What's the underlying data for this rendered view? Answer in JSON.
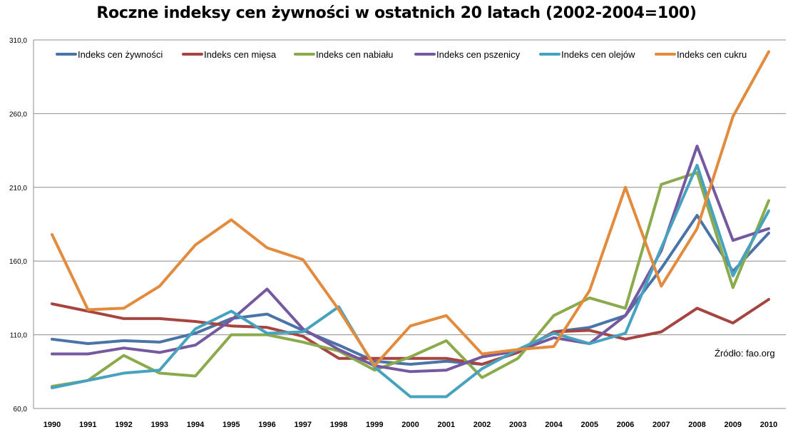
{
  "chart_data": {
    "type": "line",
    "title": "Roczne indeksy cen żywności w ostatnich 20 latach (2002-2004=100)",
    "xlabel": "",
    "ylabel": "",
    "ylim": [
      60,
      310
    ],
    "yticks": [
      "60,0",
      "110,0",
      "160,0",
      "210,0",
      "260,0",
      "310,0"
    ],
    "ytick_values": [
      60,
      110,
      160,
      210,
      260,
      310
    ],
    "categories": [
      "1990",
      "1991",
      "1992",
      "1993",
      "1994",
      "1995",
      "1996",
      "1997",
      "1998",
      "1999",
      "2000",
      "2001",
      "2002",
      "2003",
      "2004",
      "2005",
      "2006",
      "2007",
      "2008",
      "2009",
      "2010"
    ],
    "grid": true,
    "legend_position": "top",
    "source_note": "Źródło: fao.org",
    "series": [
      {
        "name": "Indeks cen żywności",
        "color": "#4a73a8",
        "values": [
          107,
          104,
          106,
          105,
          111,
          121,
          124,
          113,
          103,
          92,
          90,
          92,
          90,
          98,
          112,
          115,
          123,
          155,
          191,
          153,
          179
        ]
      },
      {
        "name": "Indeks cen mięsa",
        "color": "#a64540",
        "values": [
          131,
          126,
          121,
          121,
          119,
          116,
          115,
          109,
          94,
          94,
          94,
          94,
          90,
          98,
          112,
          113,
          107,
          112,
          128,
          118,
          134
        ]
      },
      {
        "name": "Indeks cen nabiału",
        "color": "#8aaa4b",
        "values": [
          75,
          79,
          96,
          84,
          82,
          110,
          110,
          105,
          99,
          86,
          95,
          106,
          81,
          94,
          123,
          135,
          128,
          212,
          220,
          142,
          201
        ]
      },
      {
        "name": "Indeks cen pszenicy",
        "color": "#7558a0",
        "values": [
          97,
          97,
          101,
          98,
          103,
          120,
          141,
          114,
          100,
          89,
          85,
          86,
          95,
          99,
          108,
          104,
          123,
          167,
          238,
          174,
          182
        ]
      },
      {
        "name": "Indeks cen olejów",
        "color": "#47a2c0",
        "values": [
          74,
          79,
          84,
          86,
          114,
          126,
          111,
          112,
          129,
          88,
          68,
          68,
          87,
          100,
          111,
          104,
          111,
          169,
          225,
          150,
          194
        ]
      },
      {
        "name": "Indeks cen cukru",
        "color": "#e38b3d",
        "values": [
          178,
          127,
          128,
          143,
          171,
          188,
          169,
          161,
          127,
          89,
          116,
          123,
          97,
          100,
          102,
          140,
          210,
          143,
          182,
          258,
          302
        ]
      }
    ]
  }
}
